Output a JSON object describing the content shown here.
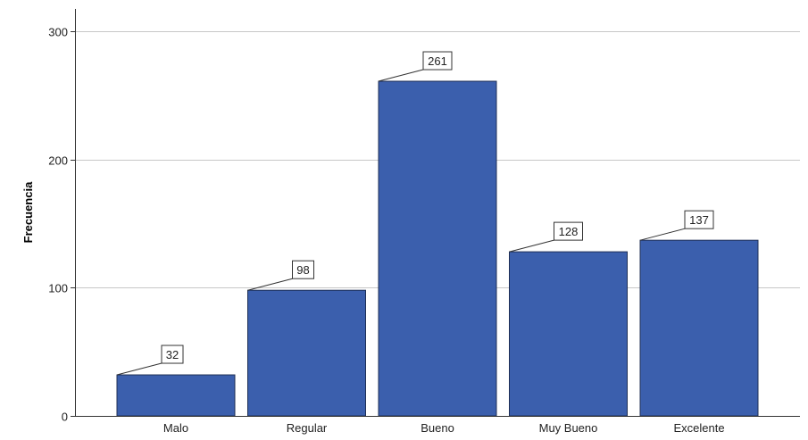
{
  "chart_data": {
    "type": "bar",
    "categories": [
      "Malo",
      "Regular",
      "Bueno",
      "Muy Bueno",
      "Excelente"
    ],
    "values": [
      32,
      98,
      261,
      128,
      137
    ],
    "data_labels": [
      "32",
      "98",
      "261",
      "128",
      "137"
    ],
    "title": "",
    "xlabel": "",
    "ylabel": "Frecuencia",
    "ylim": [
      0,
      300
    ],
    "yticks": [
      0,
      100,
      200,
      300
    ],
    "ytick_labels": [
      "0",
      "100",
      "200",
      "300"
    ],
    "grid": true,
    "legend": "none",
    "colors": {
      "bar_fill": "#3b5fad",
      "bar_stroke": "#1f2f55",
      "grid": "#c8c8c8",
      "axis": "#333333",
      "label_box_fill": "#ffffff",
      "label_box_stroke": "#333333",
      "text": "#222222"
    }
  }
}
